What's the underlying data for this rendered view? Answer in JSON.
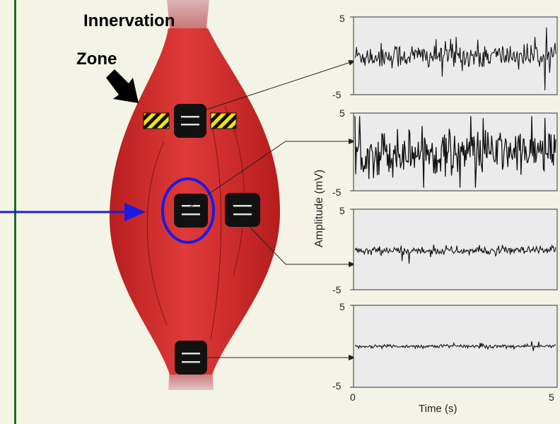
{
  "annotation": {
    "line1": "Innervation",
    "line2": "Zone"
  },
  "chart": {
    "ylabel": "Amplitude (mV)",
    "xlabel": "Time (s)",
    "x_ticks": [
      "0",
      "5"
    ],
    "panels": [
      {
        "ymax_label": "5",
        "ymin_label": "-5",
        "noise_amplitude_mv": 1.8
      },
      {
        "ymax_label": "5",
        "ymin_label": "-5",
        "noise_amplitude_mv": 3.2
      },
      {
        "ymax_label": "5",
        "ymin_label": "-5",
        "noise_amplitude_mv": 0.6
      },
      {
        "ymax_label": "5",
        "ymin_label": "-5",
        "noise_amplitude_mv": 0.25
      }
    ]
  },
  "colors": {
    "background": "#f4f4e6",
    "left_border": "#1c6b1c",
    "muscle": "#c92828",
    "muscle_light": "#d9a0a0",
    "electrode": "#111111",
    "highlight": "#1a1ae6",
    "hazard_yellow": "#f2e600"
  }
}
